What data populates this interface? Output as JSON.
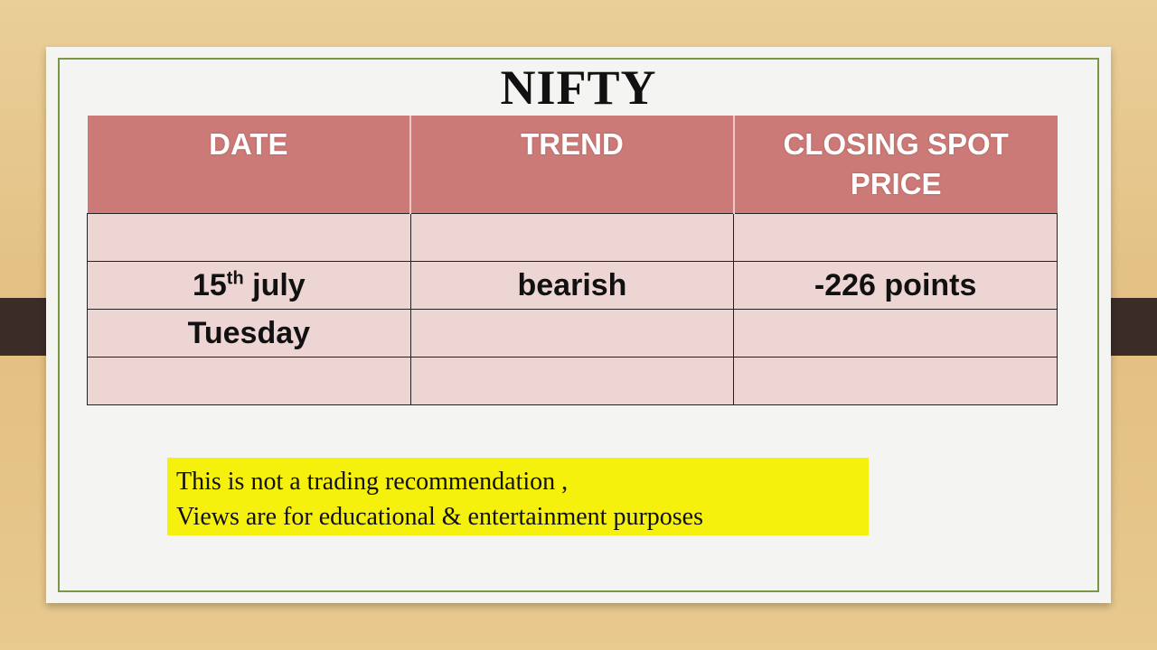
{
  "slide": {
    "title": "NIFTY",
    "table": {
      "headers": [
        "DATE",
        "TREND",
        "CLOSING SPOT PRICE"
      ],
      "rows": [
        [
          null,
          null,
          null
        ],
        [
          {
            "day": "15",
            "suffix": "th",
            "month": "july"
          },
          "bearish",
          "-226 points"
        ],
        [
          "Tuesday",
          null,
          null
        ],
        [
          null,
          null,
          null
        ]
      ]
    },
    "disclaimer": {
      "line1": "This is not a trading recommendation ,",
      "line2": "Views are for educational & entertainment purposes"
    }
  },
  "colors": {
    "header": "#cc7a77",
    "cell": "#ecd5d3",
    "disclaimer_bg": "#f5f00c",
    "frame": "#7d9444"
  }
}
